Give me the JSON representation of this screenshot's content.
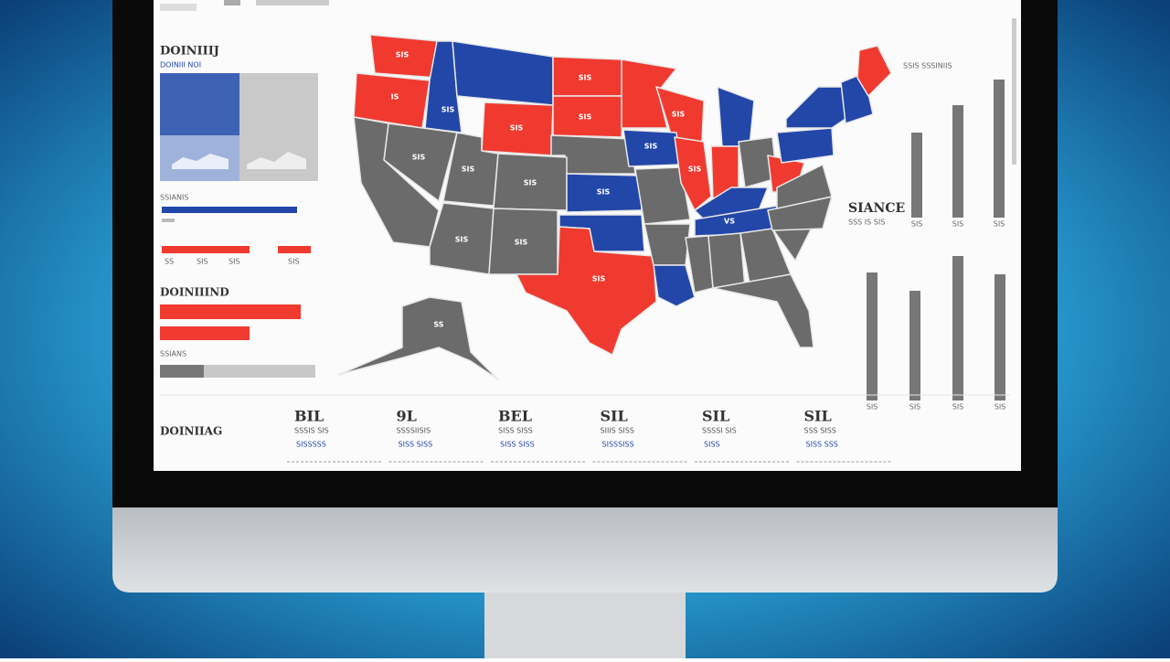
{
  "header": {
    "title": "DOINIIIJ",
    "subtitle": "DOINIII NOI"
  },
  "left_panel": {
    "bar_label_1": "SSIANIS",
    "bar_label_2": "DOINIIIND",
    "bar_label_3": "SSIANS",
    "axis_labels": [
      "SS",
      "SIS",
      "SIS",
      "SIS"
    ]
  },
  "right_panel": {
    "title": "SIANCE",
    "subtitle": "SSS IS SIS",
    "caption": "SSIS SSSINIIS",
    "bar_labels": [
      "SIS",
      "SIS",
      "SIS"
    ],
    "bottom_labels": [
      "SIS",
      "SIS",
      "SIS",
      "SIS"
    ]
  },
  "map": {
    "labels": [
      "IS",
      "SIS",
      "SIS",
      "SIS",
      "SIS",
      "SIS",
      "SIS",
      "SIS",
      "SIS",
      "SIS",
      "SIS",
      "SIS",
      "SIS",
      "SIS",
      "VS",
      "SIS",
      "SIS",
      "SS"
    ]
  },
  "footer": {
    "title": "DOINIIAG",
    "stats": [
      {
        "value": "BIL",
        "label": "SSSIS SIS",
        "sub": "SISSSSS"
      },
      {
        "value": "9L",
        "label": "SSSSIISIS",
        "sub": "SISS SISS"
      },
      {
        "value": "BEL",
        "label": "SISS SISS",
        "sub": "SISS SISS"
      },
      {
        "value": "SIL",
        "label": "SIIIS SISS",
        "sub": "SISSSISS"
      },
      {
        "value": "SIL",
        "label": "SSSSI SIS",
        "sub": "SISS"
      },
      {
        "value": "SIL",
        "label": "SSS SISS",
        "sub": "SISS SSS"
      }
    ]
  }
}
